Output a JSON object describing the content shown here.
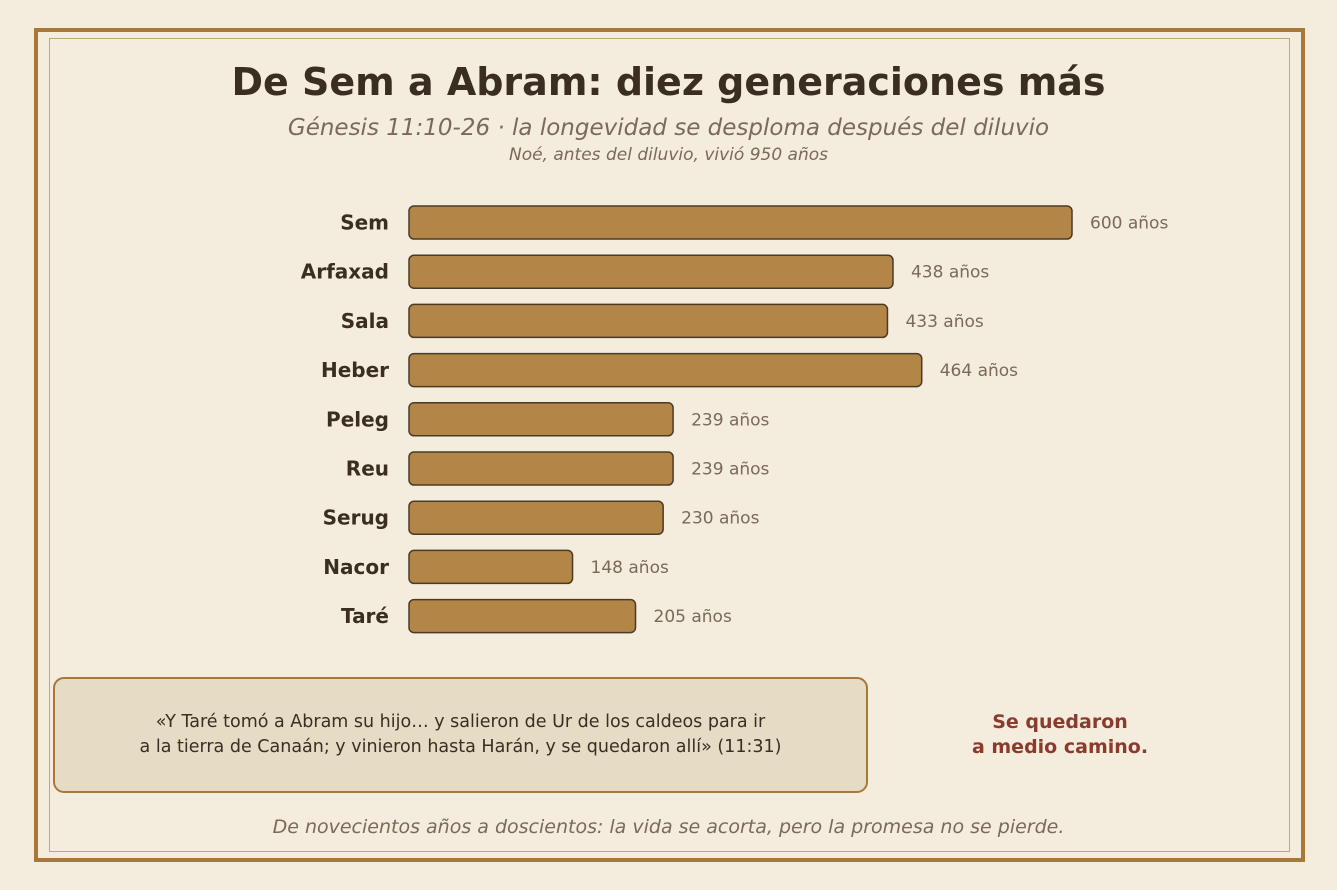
{
  "title": "De Sem a Abram: diez generaciones más",
  "subtitle": "Génesis 11:10-26 · la longevidad se desploma después del diluvio",
  "note": "Noé, antes del diluvio, vivió 950 años",
  "chart_data": {
    "type": "bar",
    "orientation": "horizontal",
    "categories": [
      "Sem",
      "Arfaxad",
      "Sala",
      "Heber",
      "Peleg",
      "Reu",
      "Serug",
      "Nacor",
      "Taré"
    ],
    "values": [
      600,
      438,
      433,
      464,
      239,
      239,
      230,
      148,
      205
    ],
    "value_labels": [
      "600 años",
      "438 años",
      "433 años",
      "464 años",
      "239 años",
      "239 años",
      "230 años",
      "148 años",
      "205 años"
    ],
    "unit": "años",
    "xlim": [
      0,
      600
    ],
    "grid": false,
    "bar_color": "#b38647",
    "bar_stroke": "#4a3a28"
  },
  "quote": {
    "line1": "«Y Taré tomó a Abram su hijo… y salieron de Ur de los caldeos para ir",
    "line2": "a la tierra de Canaán; y vinieron hasta Harán, y se quedaron allí» (11:31)"
  },
  "aside": {
    "line1": "Se quedaron",
    "line2": "a medio camino."
  },
  "footer": "De novecientos años a doscientos: la vida se acorta, pero la promesa no se pierde."
}
